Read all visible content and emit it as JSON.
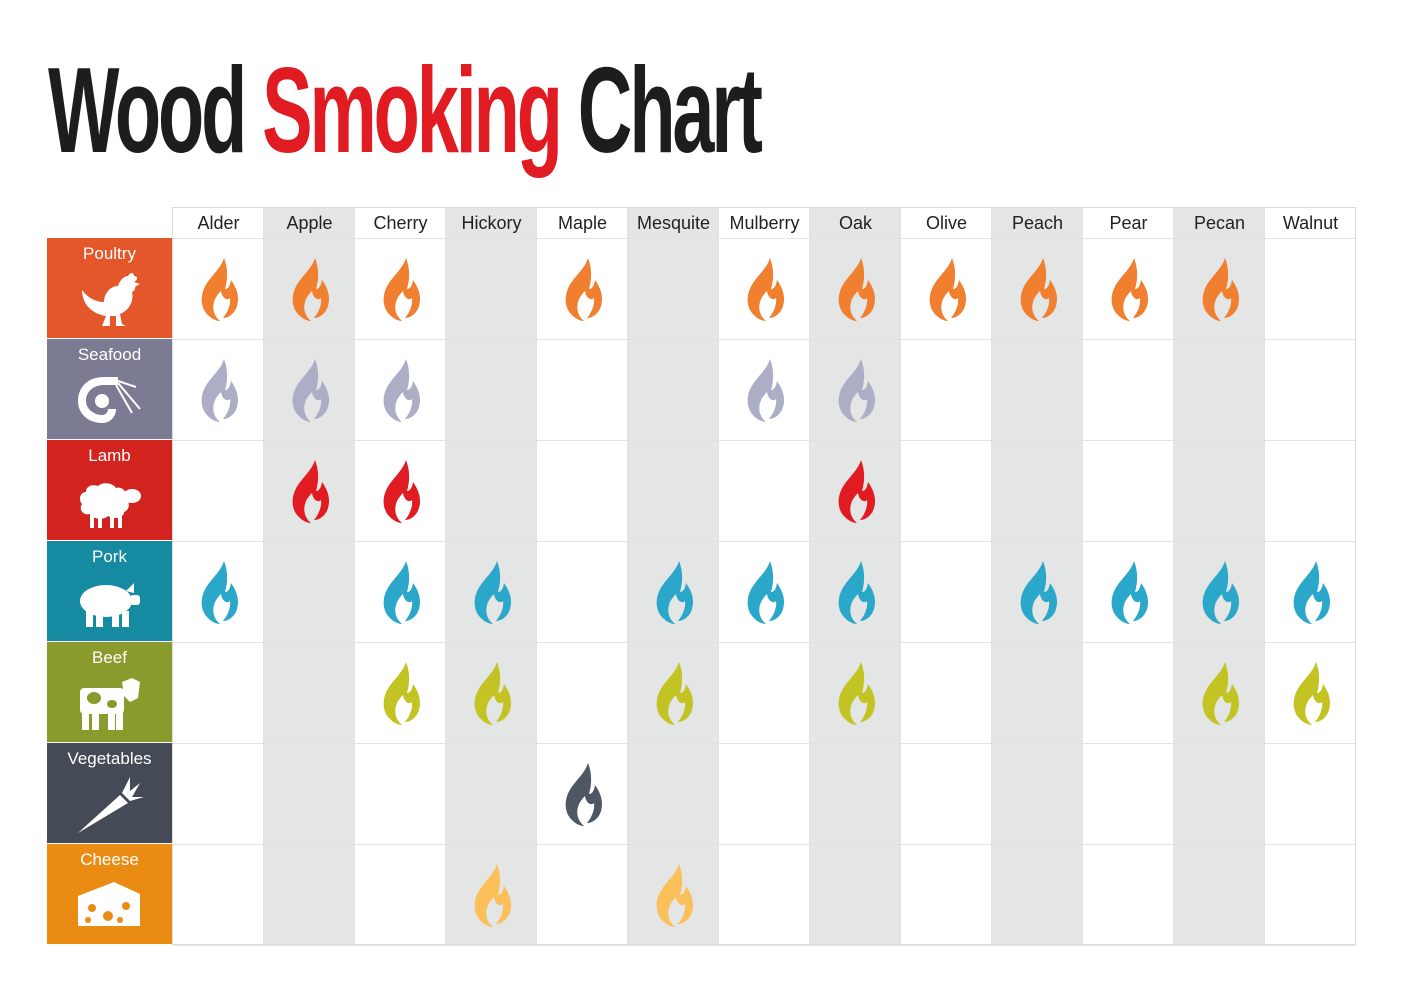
{
  "title": {
    "part1": "Wood",
    "part2": "Smoking",
    "part3": "Chart"
  },
  "woods": [
    "Alder",
    "Apple",
    "Cherry",
    "Hickory",
    "Maple",
    "Mesquite",
    "Mulberry",
    "Oak",
    "Olive",
    "Peach",
    "Pear",
    "Pecan",
    "Walnut"
  ],
  "foods": [
    {
      "label": "Poultry",
      "icon": "chicken-icon",
      "bg": "#e4572a",
      "flame": "#f07f30",
      "woods": [
        "Alder",
        "Apple",
        "Cherry",
        "Maple",
        "Mulberry",
        "Oak",
        "Olive",
        "Peach",
        "Pear",
        "Pecan"
      ]
    },
    {
      "label": "Seafood",
      "icon": "shrimp-icon",
      "bg": "#7b7c93",
      "flame": "#acaec5",
      "woods": [
        "Alder",
        "Apple",
        "Cherry",
        "Mulberry",
        "Oak"
      ]
    },
    {
      "label": "Lamb",
      "icon": "sheep-icon",
      "bg": "#d2231f",
      "flame": "#e01b22",
      "woods": [
        "Apple",
        "Cherry",
        "Oak"
      ]
    },
    {
      "label": "Pork",
      "icon": "pig-icon",
      "bg": "#168aa0",
      "flame": "#2ba7c9",
      "woods": [
        "Alder",
        "Cherry",
        "Hickory",
        "Mesquite",
        "Mulberry",
        "Oak",
        "Peach",
        "Pear",
        "Pecan",
        "Walnut"
      ]
    },
    {
      "label": "Beef",
      "icon": "cow-icon",
      "bg": "#8a9a2c",
      "flame": "#c3c423",
      "woods": [
        "Cherry",
        "Hickory",
        "Mesquite",
        "Oak",
        "Pecan",
        "Walnut"
      ]
    },
    {
      "label": "Vegetables",
      "icon": "carrot-icon",
      "bg": "#454b56",
      "flame": "#4f5664",
      "woods": [
        "Maple"
      ]
    },
    {
      "label": "Cheese",
      "icon": "cheese-icon",
      "bg": "#ea8c14",
      "flame": "#fbc05a",
      "woods": [
        "Hickory",
        "Mesquite"
      ]
    }
  ],
  "colors": {
    "title_dark": "#1d1d1d",
    "title_red": "#e01b22",
    "column_shade": "#e4e5e5"
  }
}
